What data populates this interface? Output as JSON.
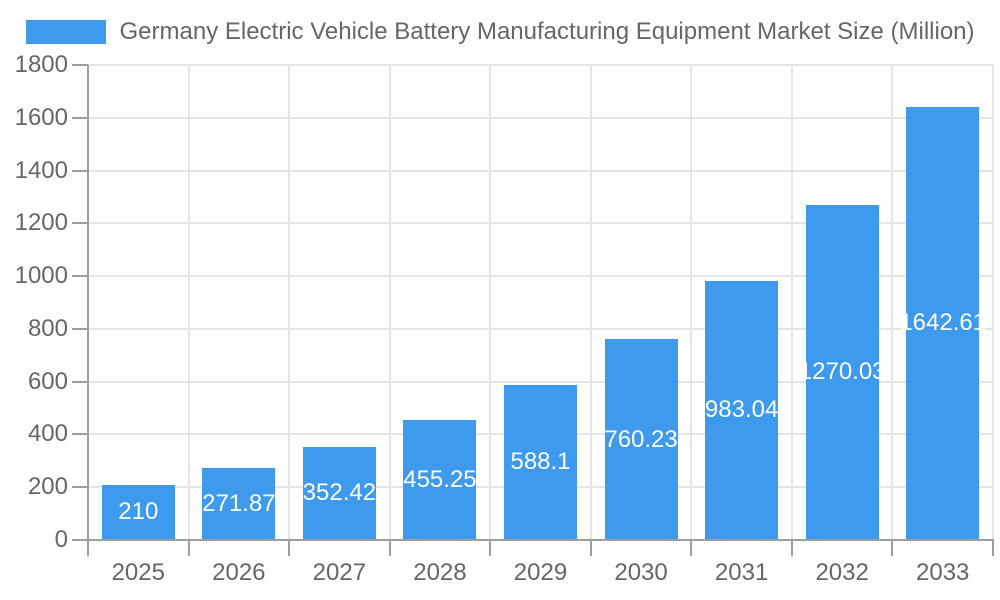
{
  "legend": {
    "label": "Germany Electric Vehicle Battery Manufacturing Equipment Market Size (Million)",
    "swatch_color": "#3D9AEC"
  },
  "chart_data": {
    "type": "bar",
    "title": "Germany Electric Vehicle Battery Manufacturing Equipment Market Size (Million)",
    "categories": [
      "2025",
      "2026",
      "2027",
      "2028",
      "2029",
      "2030",
      "2031",
      "2032",
      "2033"
    ],
    "values": [
      210,
      271.87,
      352.42,
      455.25,
      588.1,
      760.23,
      983.04,
      1270.03,
      1642.61
    ],
    "value_labels": [
      "210",
      "271.87",
      "352.42",
      "455.25",
      "588.1",
      "760.23",
      "983.04",
      "1270.03",
      "1642.61"
    ],
    "xlabel": "",
    "ylabel": "",
    "ylim": [
      0,
      1800
    ],
    "ytick_step": 200,
    "ytick_labels": [
      "0",
      "200",
      "400",
      "600",
      "800",
      "1000",
      "1200",
      "1400",
      "1600",
      "1800"
    ],
    "grid": true,
    "legend_position": "top",
    "colors": {
      "bar": "#3D9AEC",
      "value_label": "#FFFFFF",
      "grid_line": "#E5E5E5",
      "axis_line": "#9E9E9E",
      "tick_text": "#666666"
    }
  }
}
